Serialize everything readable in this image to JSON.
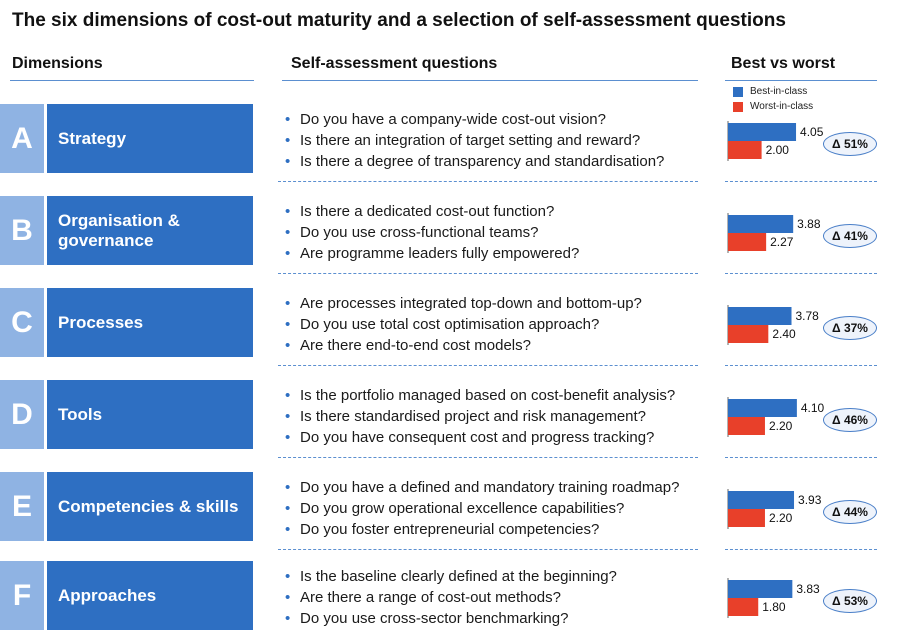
{
  "title": "The six dimensions of cost-out maturity and a selection of self-assessment questions",
  "headers": {
    "dimensions": "Dimensions",
    "questions": "Self-assessment questions",
    "best_vs_worst": "Best vs worst"
  },
  "legend": {
    "best": "Best-in-class",
    "worst": "Worst-in-class",
    "best_color": "#2e6fc2",
    "worst_color": "#e8402a"
  },
  "bullet_glyph": "•",
  "rows": [
    {
      "letter": "A",
      "dimension": "Strategy",
      "questions": [
        "Do you have a company-wide cost-out vision?",
        "Is there an integration of target setting and reward?",
        "Is there a degree of transparency and standardisation?"
      ],
      "best_label": "4.05",
      "worst_label": "2.00",
      "delta": "Δ 51%"
    },
    {
      "letter": "B",
      "dimension": "Organisation &\ngovernance",
      "questions": [
        "Is there a dedicated cost-out function?",
        "Do you use cross-functional teams?",
        "Are programme leaders fully empowered?"
      ],
      "best_label": "3.88",
      "worst_label": "2.27",
      "delta": "Δ 41%"
    },
    {
      "letter": "C",
      "dimension": "Processes",
      "questions": [
        "Are processes integrated top-down and bottom-up?",
        "Do you use total cost optimisation approach?",
        "Are there end-to-end cost models?"
      ],
      "best_label": "3.78",
      "worst_label": "2.40",
      "delta": "Δ 37%"
    },
    {
      "letter": "D",
      "dimension": "Tools",
      "questions": [
        "Is the portfolio managed based on cost-benefit analysis?",
        "Is there standardised project and risk management?",
        "Do you have consequent cost and progress tracking?"
      ],
      "best_label": "4.10",
      "worst_label": "2.20",
      "delta": "Δ 46%"
    },
    {
      "letter": "E",
      "dimension": "Competencies & skills",
      "questions": [
        "Do you have a defined and mandatory training roadmap?",
        "Do you grow operational excellence capabilities?",
        "Do you foster entrepreneurial competencies?"
      ],
      "best_label": "3.93",
      "worst_label": "2.20",
      "delta": "Δ 44%"
    },
    {
      "letter": "F",
      "dimension": "Approaches",
      "questions": [
        "Is the baseline clearly defined at the beginning?",
        "Are there a range of cost-out methods?",
        "Do you use cross-sector benchmarking?"
      ],
      "best_label": "3.83",
      "worst_label": "1.80",
      "delta": "Δ 53%"
    }
  ],
  "chart_data": {
    "type": "bar",
    "orientation": "horizontal",
    "title": "Best vs worst",
    "categories": [
      "Strategy",
      "Organisation & governance",
      "Processes",
      "Tools",
      "Competencies & skills",
      "Approaches"
    ],
    "series": [
      {
        "name": "Best-in-class",
        "values": [
          4.05,
          3.88,
          3.78,
          4.1,
          3.93,
          3.83
        ]
      },
      {
        "name": "Worst-in-class",
        "values": [
          2.0,
          2.27,
          2.4,
          2.2,
          2.2,
          1.8
        ]
      }
    ],
    "annotations": [
      "Δ 51%",
      "Δ 41%",
      "Δ 37%",
      "Δ 46%",
      "Δ 44%",
      "Δ 53%"
    ],
    "legend_position": "top"
  }
}
